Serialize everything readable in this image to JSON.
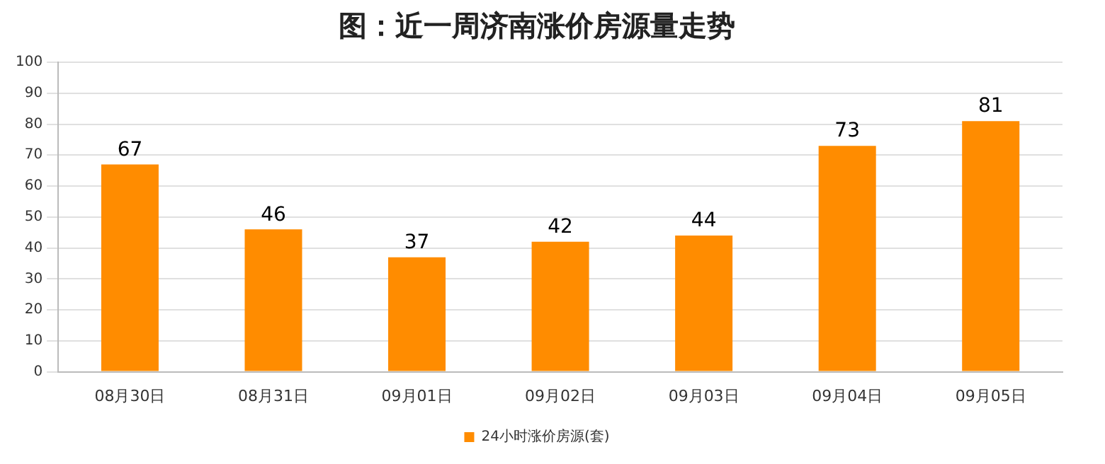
{
  "chart_data": {
    "type": "bar",
    "title": "图：近一周济南涨价房源量走势",
    "categories": [
      "08月30日",
      "08月31日",
      "09月01日",
      "09月02日",
      "09月03日",
      "09月04日",
      "09月05日"
    ],
    "series": [
      {
        "name": "24小时涨价房源(套)",
        "color": "#ff8c00",
        "values": [
          67,
          46,
          37,
          42,
          44,
          73,
          81
        ]
      }
    ],
    "ylim": [
      0,
      100
    ],
    "yticks": [
      0,
      10,
      20,
      30,
      40,
      50,
      60,
      70,
      80,
      90,
      100
    ],
    "grid": "y",
    "legend": "bottom",
    "data_labels": true
  }
}
